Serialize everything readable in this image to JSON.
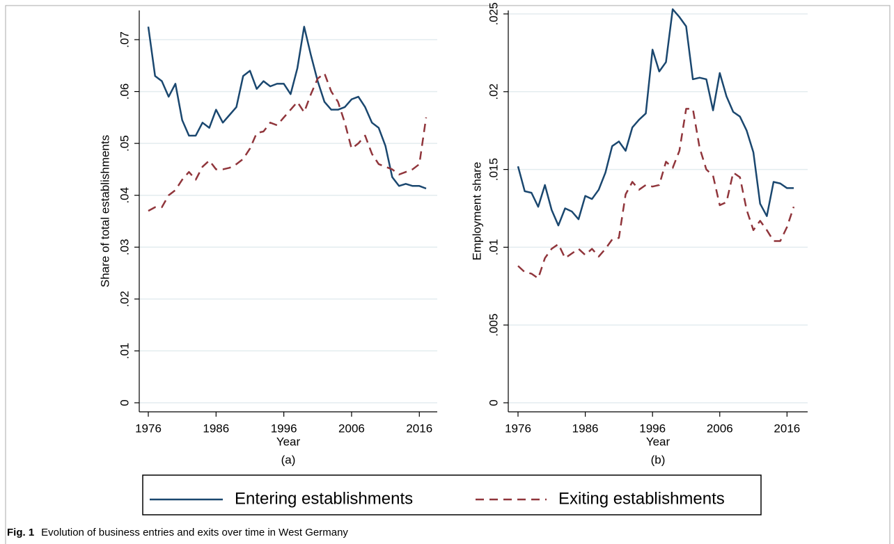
{
  "chart_data": [
    {
      "type": "line",
      "subtitle": "(a)",
      "x_label": "Year",
      "y_label": "Share of total establishments",
      "x": [
        1976,
        1977,
        1978,
        1979,
        1980,
        1981,
        1982,
        1983,
        1984,
        1985,
        1986,
        1987,
        1988,
        1989,
        1990,
        1991,
        1992,
        1993,
        1994,
        1995,
        1996,
        1997,
        1998,
        1999,
        2000,
        2001,
        2002,
        2003,
        2004,
        2005,
        2006,
        2007,
        2008,
        2009,
        2010,
        2011,
        2012,
        2013,
        2014,
        2015,
        2016,
        2017
      ],
      "series": [
        {
          "name": "Entering establishments",
          "color": "#1a476f",
          "style": "solid",
          "values": [
            0.0725,
            0.063,
            0.062,
            0.059,
            0.0615,
            0.0545,
            0.0515,
            0.0515,
            0.054,
            0.053,
            0.0565,
            0.054,
            0.0555,
            0.057,
            0.063,
            0.064,
            0.0605,
            0.062,
            0.061,
            0.0615,
            0.0615,
            0.0595,
            0.0645,
            0.0725,
            0.067,
            0.062,
            0.058,
            0.0565,
            0.0565,
            0.057,
            0.0585,
            0.059,
            0.057,
            0.054,
            0.053,
            0.0495,
            0.0435,
            0.0418,
            0.0422,
            0.0418,
            0.0418,
            0.0413
          ]
        },
        {
          "name": "Exiting establishments",
          "color": "#90353b",
          "style": "dashed",
          "values": [
            0.037,
            0.0377,
            0.0377,
            0.04,
            0.041,
            0.043,
            0.0445,
            0.043,
            0.0455,
            0.0467,
            0.045,
            0.045,
            0.0453,
            0.046,
            0.047,
            0.049,
            0.052,
            0.0523,
            0.054,
            0.0535,
            0.055,
            0.0565,
            0.058,
            0.056,
            0.0595,
            0.0625,
            0.0635,
            0.06,
            0.058,
            0.054,
            0.049,
            0.05,
            0.0515,
            0.048,
            0.046,
            0.0455,
            0.045,
            0.044,
            0.0445,
            0.045,
            0.046,
            0.055
          ]
        }
      ],
      "xlim": [
        1976,
        2017
      ],
      "xticks": [
        1976,
        1986,
        1996,
        2006,
        2016
      ],
      "ylim": [
        0,
        0.07
      ],
      "yticks": [
        0,
        {
          "value": 0.01,
          "label": ".01"
        },
        {
          "value": 0.02,
          "label": ".02"
        },
        {
          "value": 0.03,
          "label": ".03"
        },
        {
          "value": 0.04,
          "label": ".04"
        },
        {
          "value": 0.05,
          "label": ".05"
        },
        {
          "value": 0.06,
          "label": ".06"
        },
        {
          "value": 0.07,
          "label": ".07"
        }
      ],
      "grid": true
    },
    {
      "type": "line",
      "subtitle": "(b)",
      "x_label": "Year",
      "y_label": "Employment share",
      "x": [
        1976,
        1977,
        1978,
        1979,
        1980,
        1981,
        1982,
        1983,
        1984,
        1985,
        1986,
        1987,
        1988,
        1989,
        1990,
        1991,
        1992,
        1993,
        1994,
        1995,
        1996,
        1997,
        1998,
        1999,
        2000,
        2001,
        2002,
        2003,
        2004,
        2005,
        2006,
        2007,
        2008,
        2009,
        2010,
        2011,
        2012,
        2013,
        2014,
        2015,
        2016,
        2017
      ],
      "series": [
        {
          "name": "Entering establishments",
          "color": "#1a476f",
          "style": "solid",
          "values": [
            0.0152,
            0.0136,
            0.0135,
            0.0126,
            0.014,
            0.0124,
            0.0114,
            0.0125,
            0.0123,
            0.0118,
            0.0133,
            0.0131,
            0.0137,
            0.0148,
            0.0165,
            0.0168,
            0.0162,
            0.0177,
            0.0182,
            0.0186,
            0.0227,
            0.0213,
            0.0219,
            0.0253,
            0.0248,
            0.0242,
            0.0208,
            0.0209,
            0.0208,
            0.0188,
            0.0212,
            0.0197,
            0.0187,
            0.0184,
            0.0175,
            0.0161,
            0.0128,
            0.012,
            0.0142,
            0.0141,
            0.0138,
            0.0138
          ]
        },
        {
          "name": "Exiting establishments",
          "color": "#90353b",
          "style": "dashed",
          "values": [
            0.0088,
            0.0084,
            0.0083,
            0.008,
            0.0093,
            0.0099,
            0.0102,
            0.0093,
            0.0096,
            0.0099,
            0.0095,
            0.0099,
            0.0094,
            0.0099,
            0.0105,
            0.0106,
            0.0134,
            0.0142,
            0.0137,
            0.014,
            0.0139,
            0.014,
            0.0155,
            0.0151,
            0.0162,
            0.0189,
            0.0189,
            0.0164,
            0.015,
            0.0146,
            0.0127,
            0.0129,
            0.0148,
            0.0145,
            0.0124,
            0.0111,
            0.0117,
            0.0111,
            0.0104,
            0.0104,
            0.0113,
            0.0126
          ]
        }
      ],
      "xlim": [
        1976,
        2017
      ],
      "xticks": [
        1976,
        1986,
        1996,
        2006,
        2016
      ],
      "ylim": [
        0,
        0.025
      ],
      "yticks": [
        0,
        {
          "value": 0.005,
          "label": ".005"
        },
        {
          "value": 0.01,
          "label": ".01"
        },
        {
          "value": 0.015,
          "label": ".015"
        },
        {
          "value": 0.02,
          "label": ".02"
        },
        {
          "value": 0.025,
          "label": ".025"
        }
      ],
      "grid": true
    }
  ],
  "caption_label": "Fig. 1",
  "caption": "Evolution of business entries and exits over time in West Germany"
}
